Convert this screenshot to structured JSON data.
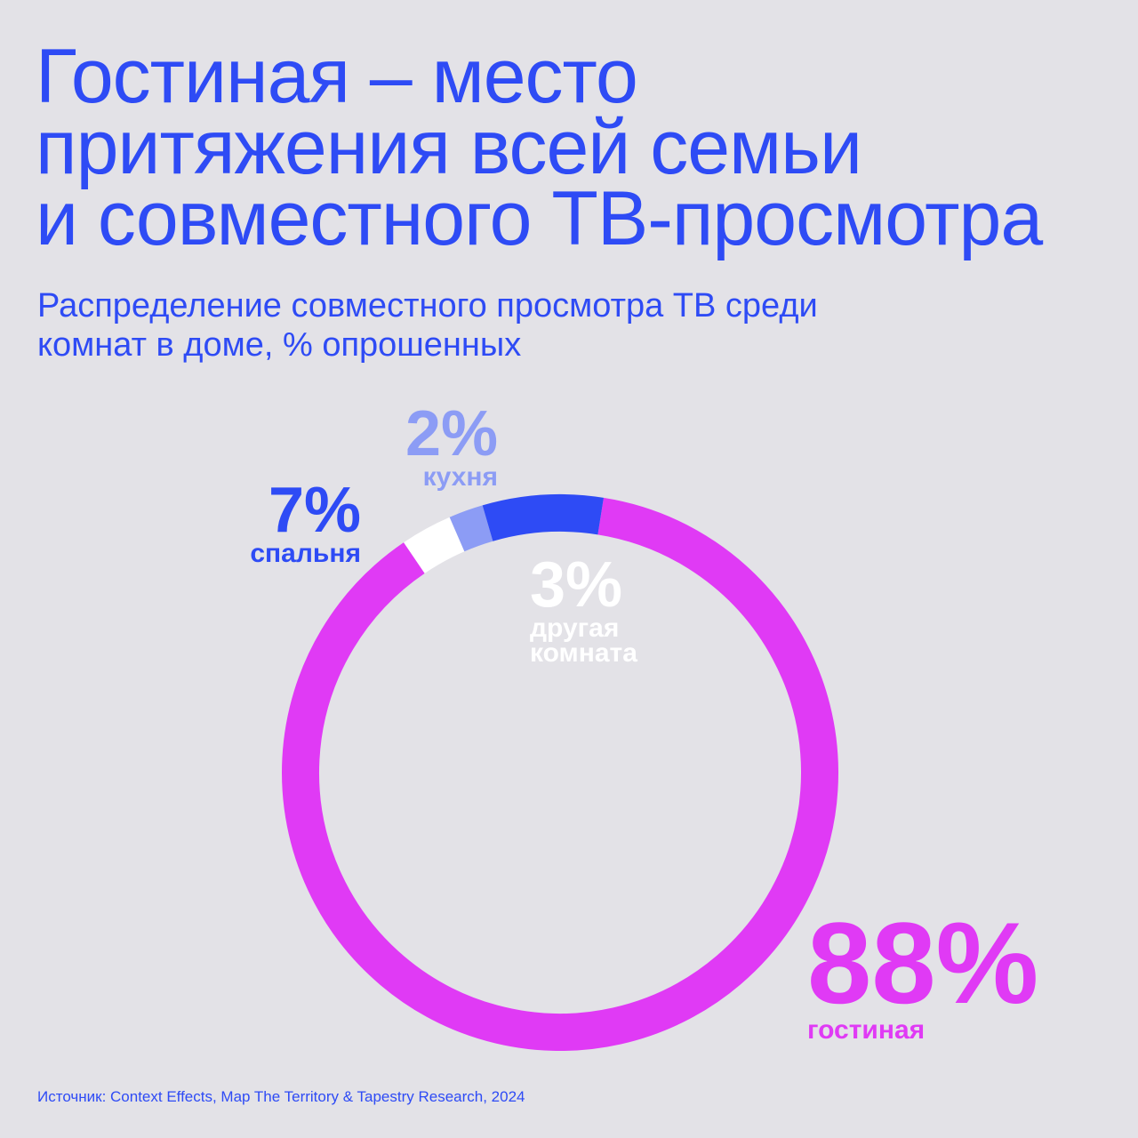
{
  "title_lines": [
    "Гостиная – место",
    "притяжения всей семьи",
    "и совместного ТВ-просмотра"
  ],
  "subtitle_lines": [
    "Распределение совместного просмотра ТВ среди",
    "комнат в доме, % опрошенных"
  ],
  "chart_data": {
    "type": "pie",
    "style": "donut",
    "categories": [
      "гостиная",
      "другая комната",
      "кухня",
      "спальня"
    ],
    "values": [
      88,
      3,
      2,
      7
    ],
    "value_labels": [
      "88%",
      "3%",
      "2%",
      "7%"
    ],
    "colors": [
      "#e03af5",
      "#ffffff",
      "#8c9cf5",
      "#2e4bf5"
    ],
    "title": "",
    "legend": "none"
  },
  "labels": {
    "living": {
      "pct": "88%",
      "name": "гостиная"
    },
    "other": {
      "pct": "3%",
      "name_line1": "другая",
      "name_line2": "комната"
    },
    "kitchen": {
      "pct": "2%",
      "name": "кухня"
    },
    "bedroom": {
      "pct": "7%",
      "name": "спальня"
    }
  },
  "source": "Источник: Context Effects, Map The Territory & Tapestry Research, 2024",
  "colors": {
    "background": "#e3e2e7",
    "accent_blue": "#2e4bf5",
    "accent_magenta": "#e03af5"
  }
}
